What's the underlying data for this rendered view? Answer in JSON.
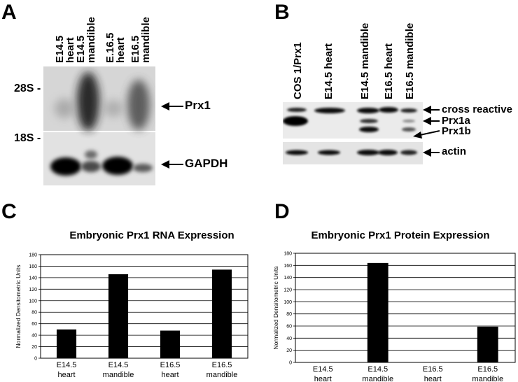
{
  "panels": {
    "A": {
      "letter": "A",
      "lanes": [
        {
          "line1": "E14.5",
          "line2": "heart"
        },
        {
          "line1": "E14.5",
          "line2": "mandible"
        },
        {
          "line1": "E.16.5",
          "line2": "heart"
        },
        {
          "line1": "E16.5",
          "line2": "mandible"
        }
      ],
      "marker_28s": "28S -",
      "marker_18s": "18S -",
      "band_prx1": "Prx1",
      "band_gapdh": "GAPDH"
    },
    "B": {
      "letter": "B",
      "lanes": [
        "COS 1/Prx1",
        "E14.5 heart",
        "E14.5 mandible",
        "E16.5 heart",
        "E16.5 mandible"
      ],
      "bands": {
        "cross_reactive": "cross reactive",
        "prx1a": "Prx1a",
        "prx1b": "Prx1b",
        "actin": "actin"
      }
    },
    "C": {
      "letter": "C"
    },
    "D": {
      "letter": "D"
    }
  },
  "chart_data": [
    {
      "type": "bar",
      "title": "Embryonic Prx1 RNA Expression",
      "ylabel": "Normalized Densitometric Units",
      "categories": [
        {
          "line1": "E14.5",
          "line2": "heart"
        },
        {
          "line1": "E14.5",
          "line2": "mandible"
        },
        {
          "line1": "E16.5",
          "line2": "heart"
        },
        {
          "line1": "E16.5",
          "line2": "mandible"
        }
      ],
      "values": [
        50,
        146,
        48,
        154
      ],
      "ylim": [
        0,
        180
      ],
      "yticks": [
        0,
        20,
        40,
        60,
        80,
        100,
        120,
        140,
        160,
        180
      ],
      "grid": true,
      "bar_color": "#000000"
    },
    {
      "type": "bar",
      "title": "Embryonic Prx1 Protein Expression",
      "ylabel": "Normalized Densitometric Units",
      "categories": [
        {
          "line1": "E14.5",
          "line2": "heart"
        },
        {
          "line1": "E14.5",
          "line2": "mandible"
        },
        {
          "line1": "E16.5",
          "line2": "heart"
        },
        {
          "line1": "E16.5",
          "line2": "mandible"
        }
      ],
      "values": [
        0,
        164,
        0,
        59
      ],
      "ylim": [
        0,
        180
      ],
      "yticks": [
        0,
        20,
        40,
        60,
        80,
        100,
        120,
        140,
        160,
        180
      ],
      "grid": true,
      "bar_color": "#000000"
    }
  ]
}
